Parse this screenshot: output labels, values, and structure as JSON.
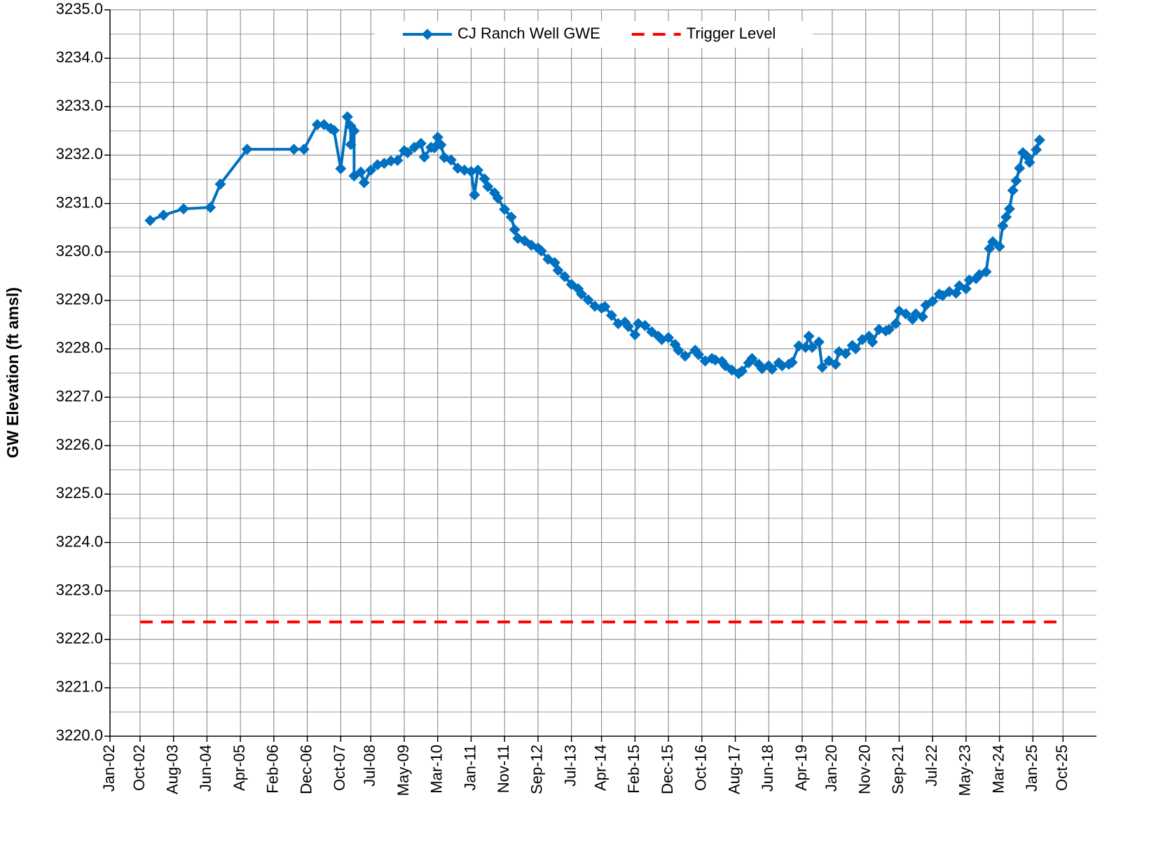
{
  "chart_data": {
    "type": "line",
    "ylabel": "GW Elevation (ft amsl)",
    "xlim": [
      "2002-01",
      "2026-08"
    ],
    "xticks": [
      {
        "value": "2002-01",
        "label": "Jan-02"
      },
      {
        "value": "2002-10",
        "label": "Oct-02"
      },
      {
        "value": "2003-08",
        "label": "Aug-03"
      },
      {
        "value": "2004-06",
        "label": "Jun-04"
      },
      {
        "value": "2005-04",
        "label": "Apr-05"
      },
      {
        "value": "2006-02",
        "label": "Feb-06"
      },
      {
        "value": "2006-12",
        "label": "Dec-06"
      },
      {
        "value": "2007-10",
        "label": "Oct-07"
      },
      {
        "value": "2008-07",
        "label": "Jul-08"
      },
      {
        "value": "2009-05",
        "label": "May-09"
      },
      {
        "value": "2010-03",
        "label": "Mar-10"
      },
      {
        "value": "2011-01",
        "label": "Jan-11"
      },
      {
        "value": "2011-11",
        "label": "Nov-11"
      },
      {
        "value": "2012-09",
        "label": "Sep-12"
      },
      {
        "value": "2013-07",
        "label": "Jul-13"
      },
      {
        "value": "2014-04",
        "label": "Apr-14"
      },
      {
        "value": "2015-02",
        "label": "Feb-15"
      },
      {
        "value": "2015-12",
        "label": "Dec-15"
      },
      {
        "value": "2016-10",
        "label": "Oct-16"
      },
      {
        "value": "2017-08",
        "label": "Aug-17"
      },
      {
        "value": "2018-06",
        "label": "Jun-18"
      },
      {
        "value": "2019-04",
        "label": "Apr-19"
      },
      {
        "value": "2020-01",
        "label": "Jan-20"
      },
      {
        "value": "2020-11",
        "label": "Nov-20"
      },
      {
        "value": "2021-09",
        "label": "Sep-21"
      },
      {
        "value": "2022-07",
        "label": "Jul-22"
      },
      {
        "value": "2023-05",
        "label": "May-23"
      },
      {
        "value": "2024-03",
        "label": "Mar-24"
      },
      {
        "value": "2025-01",
        "label": "Jan-25"
      },
      {
        "value": "2025-10",
        "label": "Oct-25"
      }
    ],
    "ylim": [
      3220,
      3235
    ],
    "yticks": [
      {
        "value": 3220,
        "label": "3220.0"
      },
      {
        "value": 3221,
        "label": "3221.0"
      },
      {
        "value": 3222,
        "label": "3222.0"
      },
      {
        "value": 3223,
        "label": "3223.0"
      },
      {
        "value": 3224,
        "label": "3224.0"
      },
      {
        "value": 3225,
        "label": "3225.0"
      },
      {
        "value": 3226,
        "label": "3226.0"
      },
      {
        "value": 3227,
        "label": "3227.0"
      },
      {
        "value": 3228,
        "label": "3228.0"
      },
      {
        "value": 3229,
        "label": "3229.0"
      },
      {
        "value": 3230,
        "label": "3230.0"
      },
      {
        "value": 3231,
        "label": "3231.0"
      },
      {
        "value": 3232,
        "label": "3232.0"
      },
      {
        "value": 3233,
        "label": "3233.0"
      },
      {
        "value": 3234,
        "label": "3234.0"
      },
      {
        "value": 3235,
        "label": "3235.0"
      }
    ],
    "y_minor_ticks": [
      3220.5,
      3221.5,
      3222.5,
      3223.5,
      3224.5,
      3225.5,
      3226.5,
      3227.5,
      3228.5,
      3229.5,
      3230.5,
      3231.5,
      3232.5,
      3233.5,
      3234.5
    ],
    "grid": true,
    "legend": "top",
    "series": [
      {
        "name": "CJ Ranch Well GWE",
        "color": "#0070c0",
        "marker": "diamond",
        "x": [
          "2003-01",
          "2003-05",
          "2003-11",
          "2004-07",
          "2004-10",
          "2005-06",
          "2006-08",
          "2006-11",
          "2007-03",
          "2007-05",
          "2007-07",
          "2007-08",
          "2007-10",
          "2007-12",
          "2008-01",
          "2008-01",
          "2008-02",
          "2008-02",
          "2008-04",
          "2008-05",
          "2008-07",
          "2008-09",
          "2008-11",
          "2009-01",
          "2009-03",
          "2009-05",
          "2009-06",
          "2009-08",
          "2009-10",
          "2009-11",
          "2010-01",
          "2010-02",
          "2010-03",
          "2010-04",
          "2010-05",
          "2010-07",
          "2010-09",
          "2010-11",
          "2011-01",
          "2011-02",
          "2011-03",
          "2011-05",
          "2011-06",
          "2011-08",
          "2011-09",
          "2011-11",
          "2012-01",
          "2012-02",
          "2012-03",
          "2012-05",
          "2012-07",
          "2012-09",
          "2012-10",
          "2012-12",
          "2013-02",
          "2013-03",
          "2013-05",
          "2013-07",
          "2013-09",
          "2013-10",
          "2013-12",
          "2014-02",
          "2014-04",
          "2014-05",
          "2014-07",
          "2014-09",
          "2014-11",
          "2014-12",
          "2015-02",
          "2015-03",
          "2015-05",
          "2015-07",
          "2015-09",
          "2015-10",
          "2015-12",
          "2016-02",
          "2016-03",
          "2016-05",
          "2016-08",
          "2016-09",
          "2016-11",
          "2017-01",
          "2017-02",
          "2017-04",
          "2017-05",
          "2017-07",
          "2017-09",
          "2017-10",
          "2017-12",
          "2018-01",
          "2018-03",
          "2018-04",
          "2018-06",
          "2018-07",
          "2018-09",
          "2018-10",
          "2018-12",
          "2019-01",
          "2019-03",
          "2019-05",
          "2019-06",
          "2019-07",
          "2019-09",
          "2019-10",
          "2019-12",
          "2020-02",
          "2020-03",
          "2020-05",
          "2020-07",
          "2020-08",
          "2020-10",
          "2020-12",
          "2021-01",
          "2021-03",
          "2021-05",
          "2021-06",
          "2021-08",
          "2021-09",
          "2021-11",
          "2022-01",
          "2022-02",
          "2022-04",
          "2022-05",
          "2022-07",
          "2022-09",
          "2022-10",
          "2022-12",
          "2023-02",
          "2023-03",
          "2023-05",
          "2023-06",
          "2023-08",
          "2023-09",
          "2023-11",
          "2023-12",
          "2024-01",
          "2024-03",
          "2024-04",
          "2024-05",
          "2024-06",
          "2024-07",
          "2024-08",
          "2024-09",
          "2024-10",
          "2024-11",
          "2024-12",
          "2025-02",
          "2025-03"
        ],
        "values": [
          3230.65,
          3230.76,
          3230.89,
          3230.92,
          3231.4,
          3232.12,
          3232.12,
          3232.12,
          3232.63,
          3232.63,
          3232.55,
          3232.51,
          3231.72,
          3232.79,
          3232.6,
          3232.22,
          3232.5,
          3231.57,
          3231.65,
          3231.43,
          3231.69,
          3231.8,
          3231.83,
          3231.88,
          3231.89,
          3232.09,
          3232.05,
          3232.16,
          3232.24,
          3231.96,
          3232.16,
          3232.15,
          3232.37,
          3232.21,
          3231.95,
          3231.9,
          3231.73,
          3231.69,
          3231.66,
          3231.18,
          3231.69,
          3231.51,
          3231.35,
          3231.22,
          3231.11,
          3230.88,
          3230.72,
          3230.46,
          3230.28,
          3230.23,
          3230.14,
          3230.08,
          3230.02,
          3229.85,
          3229.78,
          3229.62,
          3229.49,
          3229.33,
          3229.24,
          3229.13,
          3229.01,
          3228.88,
          3228.84,
          3228.87,
          3228.69,
          3228.52,
          3228.55,
          3228.46,
          3228.29,
          3228.52,
          3228.48,
          3228.35,
          3228.26,
          3228.19,
          3228.23,
          3228.09,
          3227.97,
          3227.85,
          3227.97,
          3227.88,
          3227.75,
          3227.8,
          3227.77,
          3227.74,
          3227.65,
          3227.56,
          3227.49,
          3227.54,
          3227.71,
          3227.8,
          3227.68,
          3227.59,
          3227.65,
          3227.58,
          3227.71,
          3227.65,
          3227.68,
          3227.72,
          3228.06,
          3228.03,
          3228.26,
          3228.03,
          3228.14,
          3227.62,
          3227.75,
          3227.68,
          3227.94,
          3227.9,
          3228.07,
          3228.0,
          3228.19,
          3228.26,
          3228.14,
          3228.4,
          3228.37,
          3228.4,
          3228.52,
          3228.78,
          3228.72,
          3228.61,
          3228.72,
          3228.66,
          3228.9,
          3228.98,
          3229.13,
          3229.1,
          3229.18,
          3229.15,
          3229.3,
          3229.24,
          3229.42,
          3229.45,
          3229.53,
          3229.59,
          3230.07,
          3230.21,
          3230.11,
          3230.54,
          3230.72,
          3230.89,
          3231.27,
          3231.47,
          3231.73,
          3232.05,
          3231.99,
          3231.85,
          3232.11,
          3232.31
        ]
      },
      {
        "name": "Trigger Level",
        "color": "#ff0000",
        "dashed": true,
        "x": [
          "2002-10",
          "2025-10"
        ],
        "values": [
          3222.36,
          3222.36
        ]
      }
    ]
  }
}
